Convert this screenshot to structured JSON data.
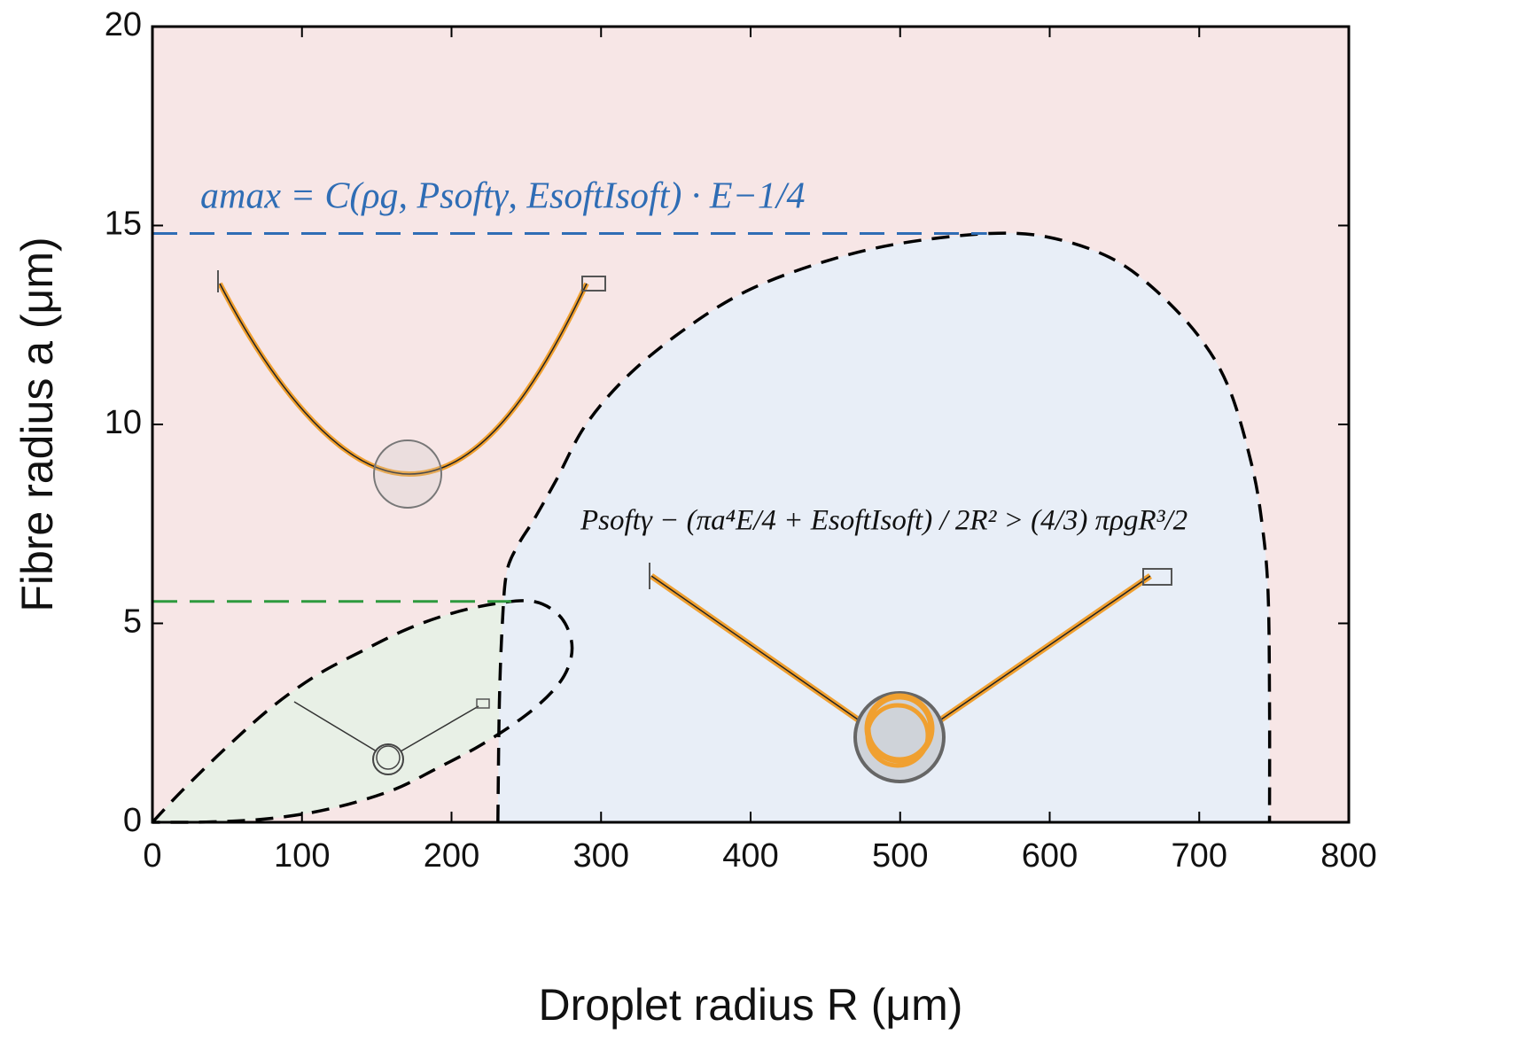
{
  "chart_data": {
    "type": "line",
    "x_label": "Droplet radius R (μm)",
    "y_label": "Fibre radius a (μm)",
    "xlim": [
      0,
      800
    ],
    "xticks": [
      0,
      100,
      200,
      300,
      400,
      500,
      600,
      700,
      800
    ],
    "ylim": [
      0,
      20
    ],
    "yticks": [
      0,
      5,
      10,
      15,
      20
    ],
    "background": "#f7e6e6",
    "series": [
      {
        "color": "#000000",
        "fill": "#e8f0e6",
        "x": [
          0,
          20,
          50,
          80,
          110,
          140,
          170,
          200,
          230,
          255,
          272,
          280,
          279,
          270,
          250,
          220,
          190,
          160,
          120,
          80,
          40,
          0
        ],
        "values": [
          0,
          0.8,
          1.9,
          2.9,
          3.7,
          4.3,
          4.85,
          5.25,
          5.5,
          5.55,
          5.2,
          4.6,
          4.0,
          3.4,
          2.7,
          1.95,
          1.35,
          0.8,
          0.35,
          0.1,
          0.01,
          0
        ]
      },
      {
        "color": "#000000",
        "fill": "#e8eef7",
        "x": [
          231,
          232,
          234,
          237,
          245,
          255,
          270,
          290,
          320,
          360,
          400,
          450,
          500,
          560,
          600,
          640,
          670,
          700,
          720,
          735,
          742,
          746,
          747,
          747
        ],
        "values": [
          0,
          3,
          5,
          6.3,
          7.0,
          7.6,
          8.6,
          10.0,
          11.3,
          12.5,
          13.4,
          14.1,
          14.55,
          14.8,
          14.7,
          14.2,
          13.4,
          12.2,
          10.9,
          9.0,
          7.5,
          5.8,
          3,
          0
        ]
      }
    ],
    "reference_lines": [
      {
        "y": 14.8,
        "x_end": 558,
        "color": "#2f6db5"
      },
      {
        "y": 5.55,
        "x_end": 240,
        "color": "#2e9a3e"
      }
    ],
    "annotations": [
      "amax = C(ρg, Psoftγ, EsoftIsoft) · E−1/4",
      "Psoftγ − (πa⁴E/4 + EsoftIsoft) / 2R² > (4/3) πρgR³/2"
    ]
  }
}
